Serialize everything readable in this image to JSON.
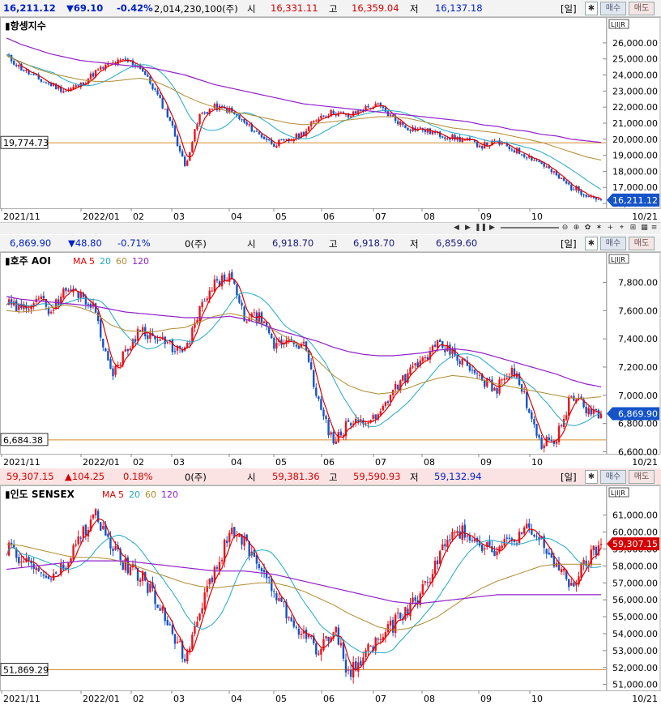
{
  "colors": {
    "up": "#e8141e",
    "down": "#1453c8",
    "ma5": "#e00000",
    "ma20": "#1fa9c8",
    "ma60": "#b08a30",
    "ma120": "#9020c8",
    "ref": "#d48a2a"
  },
  "panels": [
    {
      "id": "hangseng",
      "header": {
        "price": "16,211.12",
        "change": "▼69.10",
        "pct": "-0.42%",
        "volume": "2,014,230,100(주)",
        "open_label": "시",
        "open": "16,331.11",
        "high_label": "고",
        "high": "16,359.04",
        "low_label": "저",
        "low": "16,137.18",
        "period": "[일]",
        "buy": "매수",
        "sell": "매도"
      },
      "title": "항셍지수",
      "legend": [],
      "ref_value": "19,774.73",
      "last_value": "16,211.12",
      "y_ticks": [
        "26,000.00",
        "25,000.00",
        "24,000.00",
        "23,000.00",
        "22,000.00",
        "21,000.00",
        "20,000.00",
        "19,000.00",
        "18,000.00",
        "17,000.00",
        "16,000.00"
      ],
      "x_ticks": [
        "2021/11",
        "2022/01",
        "02",
        "03",
        "04",
        "05",
        "06",
        "07",
        "08",
        "09",
        "10"
      ],
      "date_end": "10/21"
    },
    {
      "id": "aoi",
      "header": {
        "price": "6,869.90",
        "change": "▼48.80",
        "pct": "-0.71%",
        "volume": "0(주)",
        "open_label": "시",
        "open": "6,918.70",
        "high_label": "고",
        "high": "6,918.70",
        "low_label": "저",
        "low": "6,859.60",
        "period": "[일]",
        "buy": "매수",
        "sell": "매도"
      },
      "title": "호주 AOI",
      "legend": [
        "MA",
        "5",
        "20",
        "60",
        "120"
      ],
      "ref_value": "6,684.38",
      "last_value": "6,869.90",
      "y_ticks": [
        "7,800.00",
        "7,600.00",
        "7,400.00",
        "7,200.00",
        "7,000.00",
        "6,800.00",
        "6,600.00"
      ],
      "x_ticks": [
        "2021/11",
        "2022/01",
        "02",
        "03",
        "04",
        "05",
        "06",
        "07",
        "08",
        "09",
        "10"
      ],
      "date_end": "10/21"
    },
    {
      "id": "sensex",
      "header": {
        "price": "59,307.15",
        "change": "▲104.25",
        "pct": "0.18%",
        "volume": "0(주)",
        "open_label": "시",
        "open": "59,381.36",
        "high_label": "고",
        "high": "59,590.93",
        "low_label": "저",
        "low": "59,132.94",
        "period": "[일]",
        "buy": "매수",
        "sell": "매도"
      },
      "title": "인도 SENSEX",
      "legend": [
        "MA",
        "5",
        "20",
        "60",
        "120"
      ],
      "ref_value": "51,869.29",
      "last_value": "59,307.15",
      "y_ticks": [
        "61,000.00",
        "60,000.00",
        "59,000.00",
        "58,000.00",
        "57,000.00",
        "56,000.00",
        "55,000.00",
        "54,000.00",
        "53,000.00",
        "52,000.00",
        "51,000.00"
      ],
      "x_ticks": [
        "2021/11",
        "2022/01",
        "02",
        "03",
        "04",
        "05",
        "06",
        "07",
        "08",
        "09",
        "10"
      ],
      "date_end": "10/21"
    }
  ],
  "chart_data": [
    {
      "type": "line",
      "title": "항셍지수",
      "ylim": [
        15700,
        26700
      ],
      "series": [
        {
          "name": "항셍지수",
          "x": [
            0,
            6,
            12,
            18,
            24,
            30,
            36,
            42,
            48,
            54,
            60,
            66,
            72,
            78,
            84,
            90,
            96,
            102,
            108,
            114,
            120,
            126,
            132,
            138,
            144,
            150,
            156,
            162,
            168,
            174,
            180,
            186,
            192,
            198,
            204,
            210,
            216,
            222,
            228,
            234,
            240
          ],
          "values": [
            25200,
            24400,
            23800,
            23400,
            23000,
            23400,
            24200,
            24700,
            24900,
            24500,
            23000,
            21200,
            18300,
            21500,
            22000,
            21800,
            21000,
            20300,
            19700,
            19900,
            20400,
            21400,
            21700,
            21400,
            21900,
            22100,
            21300,
            20700,
            20600,
            20300,
            20100,
            19900,
            19600,
            19800,
            19400,
            19000,
            18500,
            17700,
            17000,
            16600,
            16211
          ]
        },
        {
          "name": "MA60",
          "values": [
            25200,
            24800,
            24400,
            24100,
            23900,
            23700,
            23600,
            23600,
            23700,
            23800,
            23600,
            23200,
            22700,
            22300,
            22000,
            21700,
            21600,
            21400,
            21200,
            21000,
            20900,
            21000,
            21100,
            21200,
            21300,
            21400,
            21400,
            21300,
            21100,
            20900,
            20700,
            20600,
            20500,
            20400,
            20200,
            20000,
            19800,
            19500,
            19200,
            18900,
            18700
          ]
        },
        {
          "name": "MA120",
          "values": [
            26300,
            25900,
            25600,
            25300,
            25100,
            24900,
            24800,
            24700,
            24600,
            24500,
            24400,
            24200,
            24000,
            23700,
            23400,
            23200,
            23000,
            22800,
            22600,
            22400,
            22200,
            22100,
            22000,
            21900,
            21800,
            21700,
            21600,
            21500,
            21400,
            21300,
            21200,
            21100,
            20900,
            20800,
            20600,
            20500,
            20300,
            20200,
            20000,
            19900,
            19800
          ]
        }
      ]
    },
    {
      "type": "line",
      "title": "호주 AOI",
      "ylim": [
        6580,
        7900
      ],
      "series": [
        {
          "name": "호주 AOI",
          "x": [
            0,
            6,
            12,
            18,
            24,
            30,
            36,
            42,
            48,
            54,
            60,
            66,
            72,
            78,
            84,
            90,
            96,
            102,
            108,
            114,
            120,
            126,
            132,
            138,
            144,
            150,
            156,
            162,
            168,
            174,
            180,
            186,
            192,
            198,
            204,
            210,
            216,
            222,
            228,
            234,
            240
          ],
          "values": [
            7650,
            7600,
            7700,
            7600,
            7750,
            7720,
            7600,
            7150,
            7300,
            7480,
            7400,
            7350,
            7300,
            7600,
            7780,
            7850,
            7550,
            7550,
            7350,
            7400,
            7350,
            6950,
            6650,
            6800,
            6820,
            6850,
            7050,
            7150,
            7250,
            7350,
            7300,
            7200,
            7100,
            7050,
            7200,
            6950,
            6650,
            6700,
            7000,
            6900,
            6870
          ]
        },
        {
          "name": "MA60",
          "values": [
            7600,
            7590,
            7600,
            7620,
            7640,
            7620,
            7580,
            7500,
            7460,
            7450,
            7450,
            7470,
            7480,
            7520,
            7560,
            7580,
            7560,
            7520,
            7460,
            7400,
            7330,
            7240,
            7140,
            7070,
            7030,
            7010,
            7020,
            7050,
            7090,
            7120,
            7140,
            7130,
            7110,
            7080,
            7060,
            7040,
            7020,
            7000,
            6980,
            6980,
            6990
          ]
        },
        {
          "name": "MA120",
          "values": [
            7700,
            7680,
            7670,
            7660,
            7650,
            7640,
            7630,
            7610,
            7590,
            7580,
            7570,
            7560,
            7550,
            7550,
            7550,
            7560,
            7540,
            7510,
            7470,
            7440,
            7410,
            7380,
            7340,
            7310,
            7290,
            7280,
            7280,
            7290,
            7300,
            7320,
            7330,
            7320,
            7300,
            7270,
            7240,
            7210,
            7180,
            7150,
            7110,
            7080,
            7060
          ]
        }
      ]
    },
    {
      "type": "line",
      "title": "인도 SENSEX",
      "ylim": [
        50600,
        61800
      ],
      "series": [
        {
          "name": "인도 SENSEX",
          "x": [
            0,
            6,
            12,
            18,
            24,
            30,
            36,
            42,
            48,
            54,
            60,
            66,
            72,
            78,
            84,
            90,
            96,
            102,
            108,
            114,
            120,
            126,
            132,
            138,
            144,
            150,
            156,
            162,
            168,
            174,
            180,
            186,
            192,
            198,
            204,
            210,
            216,
            222,
            228,
            234,
            240
          ],
          "values": [
            59000,
            58500,
            57800,
            57200,
            58000,
            59800,
            61000,
            59200,
            58000,
            57500,
            56000,
            54500,
            52500,
            55600,
            57500,
            60000,
            59500,
            58000,
            56500,
            55000,
            54000,
            52900,
            54500,
            51500,
            52800,
            53600,
            54500,
            55500,
            56500,
            58500,
            59800,
            60000,
            59300,
            59000,
            59500,
            60100,
            59400,
            58000,
            56800,
            58200,
            59307
          ]
        },
        {
          "name": "MA60",
          "values": [
            59300,
            59200,
            59000,
            58800,
            58600,
            58500,
            58500,
            58400,
            58200,
            57900,
            57600,
            57300,
            57000,
            56800,
            56700,
            56800,
            56900,
            57000,
            57000,
            56800,
            56500,
            56100,
            55700,
            55200,
            54800,
            54400,
            54200,
            54300,
            54600,
            55000,
            55600,
            56200,
            56700,
            57100,
            57400,
            57700,
            58000,
            58100,
            58100,
            58100,
            58100
          ]
        },
        {
          "name": "MA120",
          "values": [
            57800,
            57900,
            58000,
            58100,
            58200,
            58300,
            58300,
            58300,
            58300,
            58200,
            58100,
            58000,
            57900,
            57800,
            57700,
            57700,
            57700,
            57600,
            57500,
            57300,
            57100,
            56900,
            56700,
            56500,
            56300,
            56100,
            55900,
            55800,
            55800,
            55900,
            56000,
            56100,
            56200,
            56300,
            56300,
            56300,
            56300,
            56300,
            56300,
            56300,
            56300
          ]
        }
      ]
    }
  ]
}
